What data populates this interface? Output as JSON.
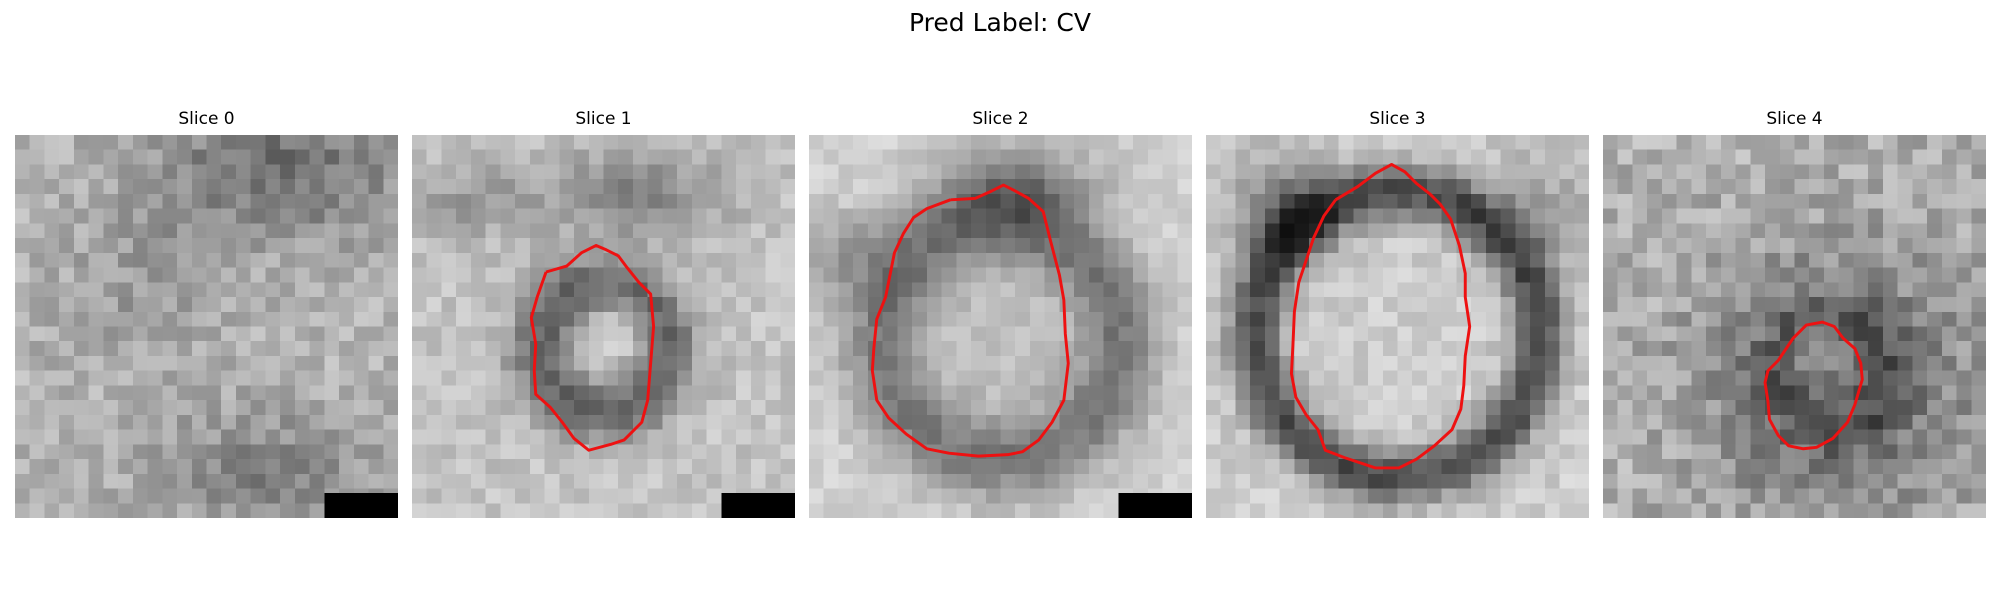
{
  "figure": {
    "title": "Pred Label: CV"
  },
  "slices": [
    {
      "title": "Slice 0",
      "has_contour": false,
      "has_scale_bar": true
    },
    {
      "title": "Slice 1",
      "has_contour": true,
      "has_scale_bar": true
    },
    {
      "title": "Slice 2",
      "has_contour": true,
      "has_scale_bar": true
    },
    {
      "title": "Slice 3",
      "has_contour": true,
      "has_scale_bar": false
    },
    {
      "title": "Slice 4",
      "has_contour": true,
      "has_scale_bar": false
    }
  ],
  "colors": {
    "contour": "#ee1111",
    "scale_bar": "#000000"
  }
}
